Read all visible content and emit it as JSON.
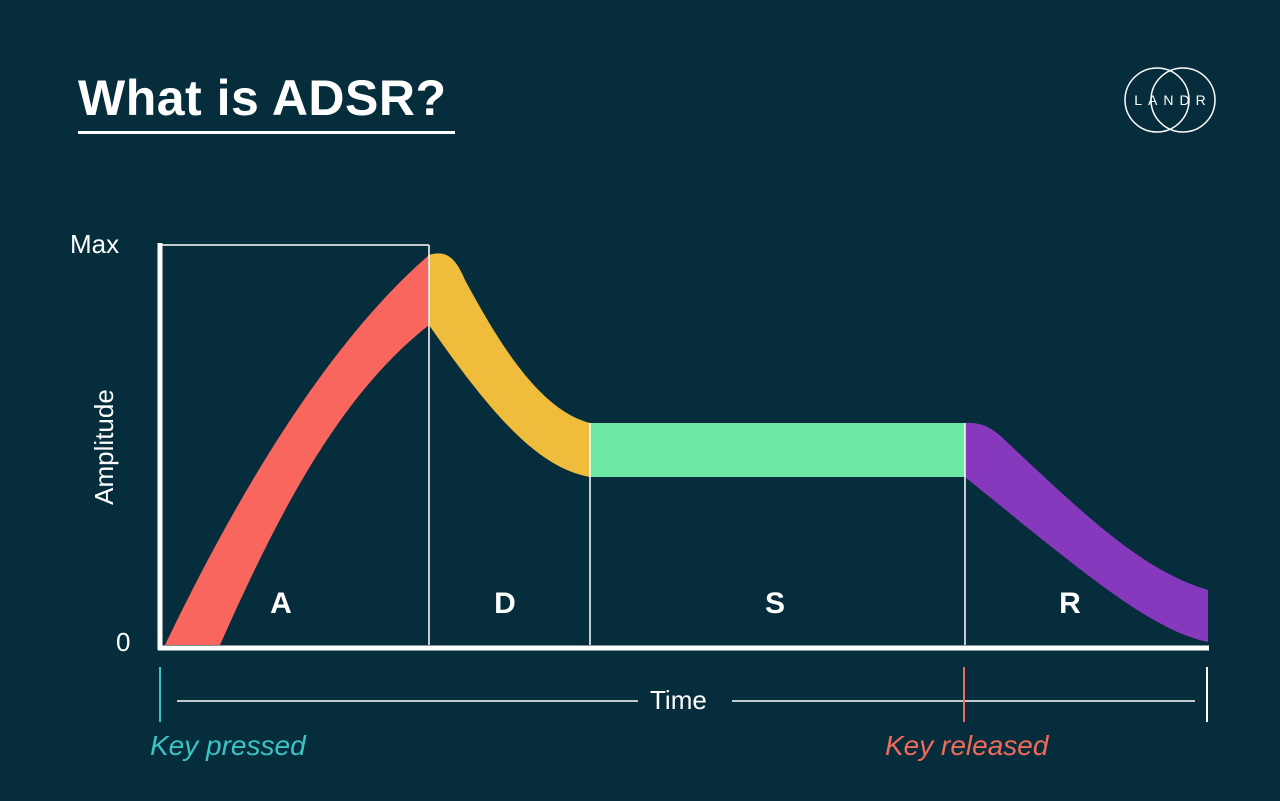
{
  "title": "What is ADSR?",
  "logo": {
    "text": "LANDR",
    "icon": "landr-logo-icon"
  },
  "axes": {
    "y_label": "Amplitude",
    "y_max_label": "Max",
    "y_zero_label": "0",
    "x_label": "Time"
  },
  "segments": [
    {
      "key": "attack",
      "label": "A",
      "color": "#f9665e"
    },
    {
      "key": "decay",
      "label": "D",
      "color": "#f0bc3c"
    },
    {
      "key": "sustain",
      "label": "S",
      "color": "#6ce8a4"
    },
    {
      "key": "release",
      "label": "R",
      "color": "#8739be"
    }
  ],
  "markers": {
    "key_pressed": {
      "text": "Key pressed",
      "color": "#3bc4c4"
    },
    "key_released": {
      "text": "Key released",
      "color": "#f26a5a"
    }
  },
  "colors": {
    "background": "#062d3c",
    "line": "#ffffff"
  }
}
